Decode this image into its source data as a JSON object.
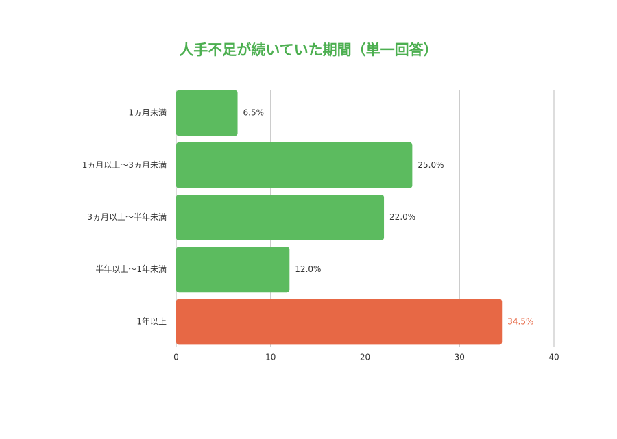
{
  "chart_data": {
    "type": "bar",
    "orientation": "horizontal",
    "title": "人手不足が続いていた期間（単一回答）",
    "categories": [
      "1ヵ月未満",
      "1ヵ月以上〜3ヵ月未満",
      "3ヵ月以上〜半年未満",
      "半年以上〜1年未満",
      "1年以上"
    ],
    "values": [
      6.5,
      25.0,
      22.0,
      12.0,
      34.5
    ],
    "value_labels": [
      "6.5%",
      "25.0%",
      "22.0%",
      "12.0%",
      "34.5%"
    ],
    "colors": [
      "#5cbb5f",
      "#5cbb5f",
      "#5cbb5f",
      "#5cbb5f",
      "#e76845"
    ],
    "label_colors": [
      "#333333",
      "#333333",
      "#333333",
      "#333333",
      "#e76845"
    ],
    "title_color": "#4caf50",
    "xlim": [
      0,
      40
    ],
    "xticks": [
      0,
      10,
      20,
      30,
      40
    ],
    "grid": true
  }
}
